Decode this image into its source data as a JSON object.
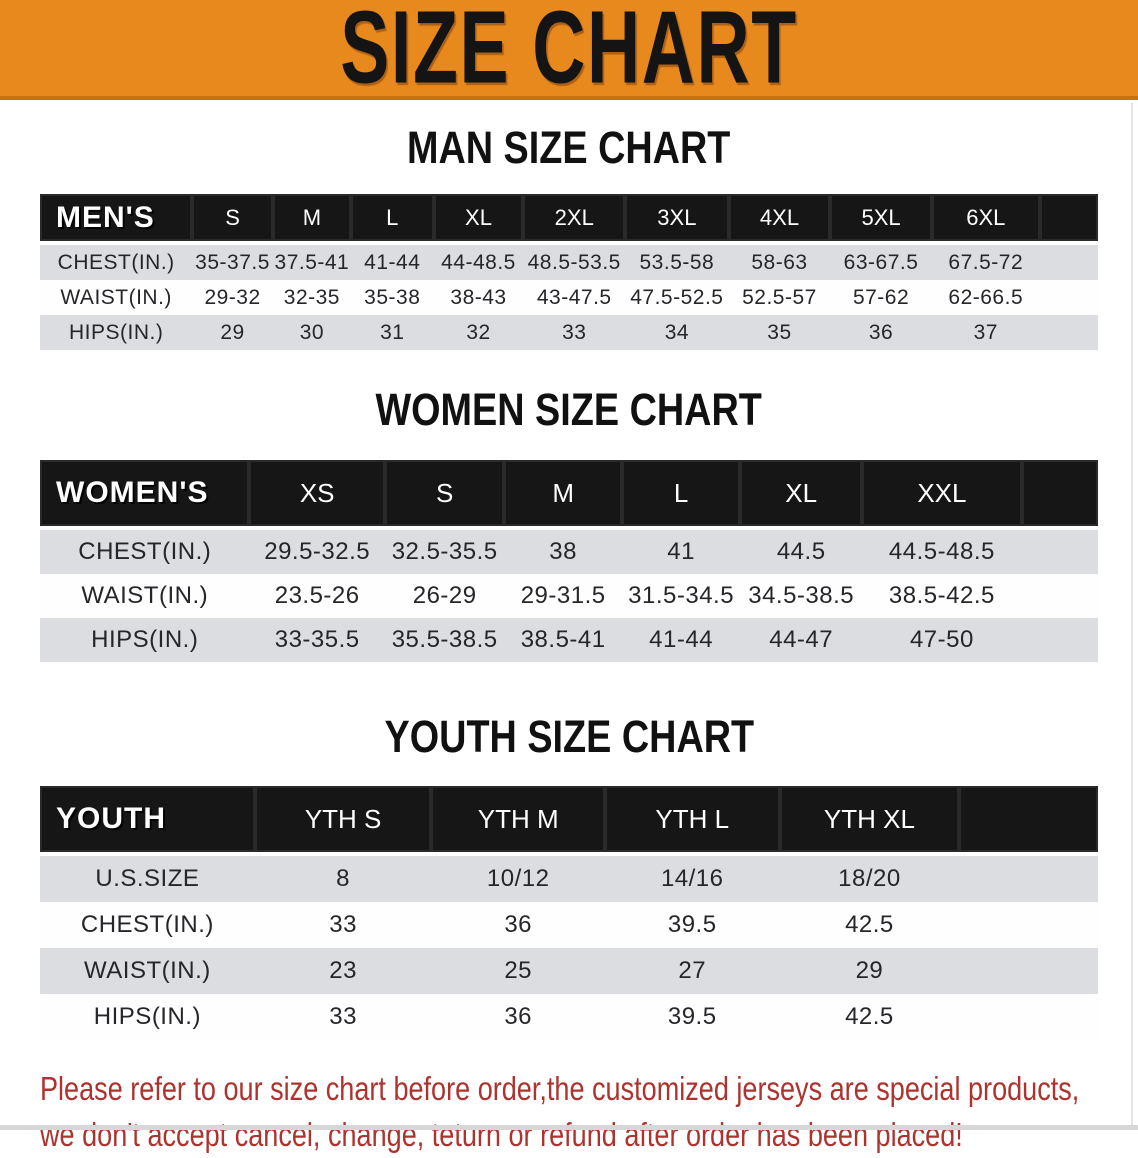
{
  "banner": {
    "title": "SIZE CHART"
  },
  "colors": {
    "banner_bg": "#E8891E",
    "banner_edge": "#C9700F",
    "banner_text": "#141414",
    "table_header_bg": "#161616",
    "table_header_text": "#FFFFFF",
    "stripe_gray": "#DCDDE0",
    "stripe_white": "#FEFEFE",
    "data_text": "#26262A",
    "note_red": "#AE332E"
  },
  "sections": [
    {
      "heading": "MAN SIZE CHART",
      "table": {
        "label": "MEN'S",
        "columns": [
          "S",
          "M",
          "L",
          "XL",
          "2XL",
          "3XL",
          "4XL",
          "5XL",
          "6XL"
        ],
        "rows": [
          {
            "label": "CHEST(IN.)",
            "values": [
              "35-37.5",
              "37.5-41",
              "41-44",
              "44-48.5",
              "48.5-53.5",
              "53.5-58",
              "58-63",
              "63-67.5",
              "67.5-72"
            ]
          },
          {
            "label": "WAIST(IN.)",
            "values": [
              "29-32",
              "32-35",
              "35-38",
              "38-43",
              "43-47.5",
              "47.5-52.5",
              "52.5-57",
              "57-62",
              "62-66.5"
            ]
          },
          {
            "label": "HIPS(IN.)",
            "values": [
              "29",
              "30",
              "31",
              "32",
              "33",
              "34",
              "35",
              "36",
              "37"
            ]
          }
        ]
      }
    },
    {
      "heading": "WOMEN SIZE CHART",
      "table": {
        "label": "WOMEN'S",
        "columns": [
          "XS",
          "S",
          "M",
          "L",
          "XL",
          "XXL"
        ],
        "rows": [
          {
            "label": "CHEST(IN.)",
            "values": [
              "29.5-32.5",
              "32.5-35.5",
              "38",
              "41",
              "44.5",
              "44.5-48.5"
            ]
          },
          {
            "label": "WAIST(IN.)",
            "values": [
              "23.5-26",
              "26-29",
              "29-31.5",
              "31.5-34.5",
              "34.5-38.5",
              "38.5-42.5"
            ]
          },
          {
            "label": "HIPS(IN.)",
            "values": [
              "33-35.5",
              "35.5-38.5",
              "38.5-41",
              "41-44",
              "44-47",
              "47-50"
            ]
          }
        ]
      }
    },
    {
      "heading": "YOUTH SIZE CHART",
      "table": {
        "label": "YOUTH",
        "columns": [
          "YTH S",
          "YTH M",
          "YTH L",
          "YTH XL"
        ],
        "rows": [
          {
            "label": "U.S.SIZE",
            "values": [
              "8",
              "10/12",
              "14/16",
              "18/20"
            ]
          },
          {
            "label": "CHEST(IN.)",
            "values": [
              "33",
              "36",
              "39.5",
              "42.5"
            ]
          },
          {
            "label": "WAIST(IN.)",
            "values": [
              "23",
              "25",
              "27",
              "29"
            ]
          },
          {
            "label": "HIPS(IN.)",
            "values": [
              "33",
              "36",
              "39.5",
              "42.5"
            ]
          }
        ]
      }
    }
  ],
  "footer": {
    "lines": [
      "Please refer to our size chart before order,the customized jerseys are special products,",
      "we don't accept cancel, change, teturn or refund after order has been placed!"
    ]
  }
}
